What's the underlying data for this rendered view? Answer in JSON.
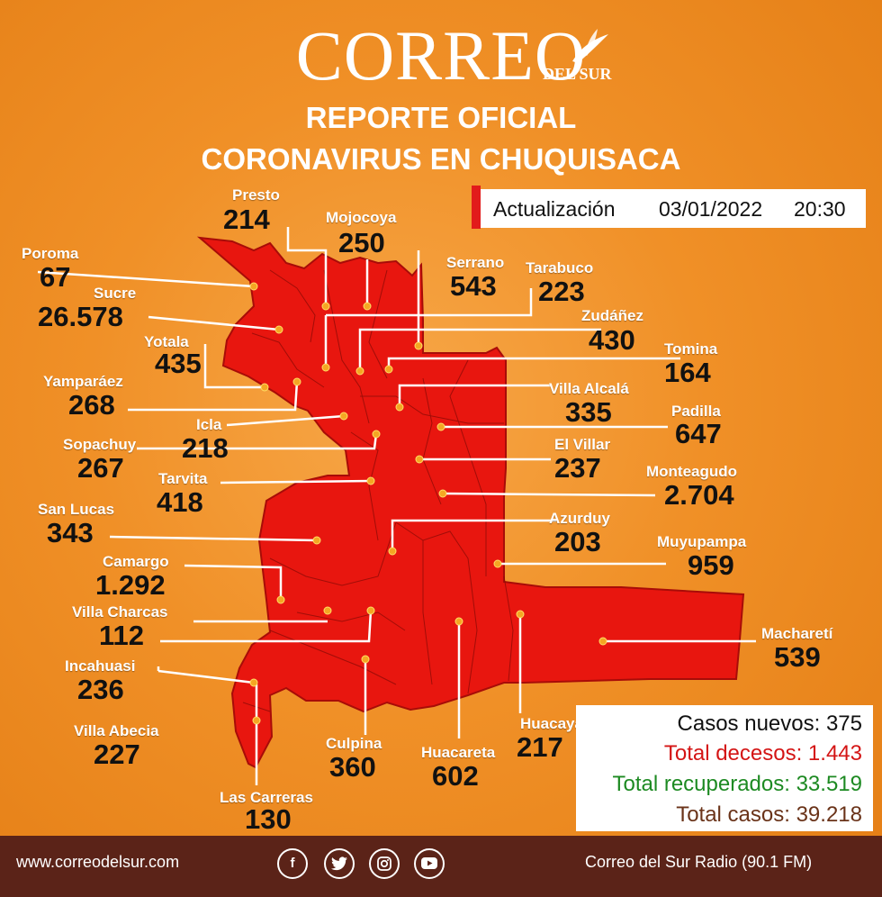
{
  "header": {
    "logo": "CORREO",
    "logo_sub": "DEL SUR",
    "title_1": "REPORTE OFICIAL",
    "title_2": "CORONAVIRUS EN CHUQUISACA"
  },
  "update": {
    "label": "Actualización",
    "date": "03/01/2022",
    "time": "20:30"
  },
  "municipalities": [
    {
      "name": "Presto",
      "value": "214"
    },
    {
      "name": "Mojocoya",
      "value": "250"
    },
    {
      "name": "Poroma",
      "value": "67"
    },
    {
      "name": "Serrano",
      "value": "543"
    },
    {
      "name": "Tarabuco",
      "value": "223"
    },
    {
      "name": "Sucre",
      "value": "26.578"
    },
    {
      "name": "Zudáñez",
      "value": "430"
    },
    {
      "name": "Yotala",
      "value": "435"
    },
    {
      "name": "Tomina",
      "value": "164"
    },
    {
      "name": "Yamparáez",
      "value": "268"
    },
    {
      "name": "Villa Alcalá",
      "value": "335"
    },
    {
      "name": "Icla",
      "value": "218"
    },
    {
      "name": "Padilla",
      "value": "647"
    },
    {
      "name": "Sopachuy",
      "value": "267"
    },
    {
      "name": "El Villar",
      "value": "237"
    },
    {
      "name": "Tarvita",
      "value": "418"
    },
    {
      "name": "Monteagudo",
      "value": "2.704"
    },
    {
      "name": "San Lucas",
      "value": "343"
    },
    {
      "name": "Azurduy",
      "value": "203"
    },
    {
      "name": "Muyupampa",
      "value": "959"
    },
    {
      "name": "Camargo",
      "value": "1.292"
    },
    {
      "name": "Villa Charcas",
      "value": "112"
    },
    {
      "name": "Macharetí",
      "value": "539"
    },
    {
      "name": "Incahuasi",
      "value": "236"
    },
    {
      "name": "Villa Abecia",
      "value": "227"
    },
    {
      "name": "Huacaya",
      "value": "217"
    },
    {
      "name": "Culpina",
      "value": "360"
    },
    {
      "name": "Huacareta",
      "value": "602"
    },
    {
      "name": "Las Carreras",
      "value": "130"
    }
  ],
  "stats": {
    "new_cases": "Casos nuevos: 375",
    "deaths": "Total decesos: 1.443",
    "recovered": "Total recuperados: 33.519",
    "total": "Total casos: 39.218"
  },
  "colors": {
    "map": "#e8160f",
    "deaths": "#d41515",
    "recovered": "#1d8a22",
    "total": "#6a3319",
    "footer": "#5b2318"
  },
  "footer": {
    "website": "www.correodelsur.com",
    "radio": "Correo del Sur Radio (90.1 FM)",
    "social_icons": [
      "facebook-icon",
      "twitter-icon",
      "instagram-icon",
      "youtube-icon"
    ]
  }
}
